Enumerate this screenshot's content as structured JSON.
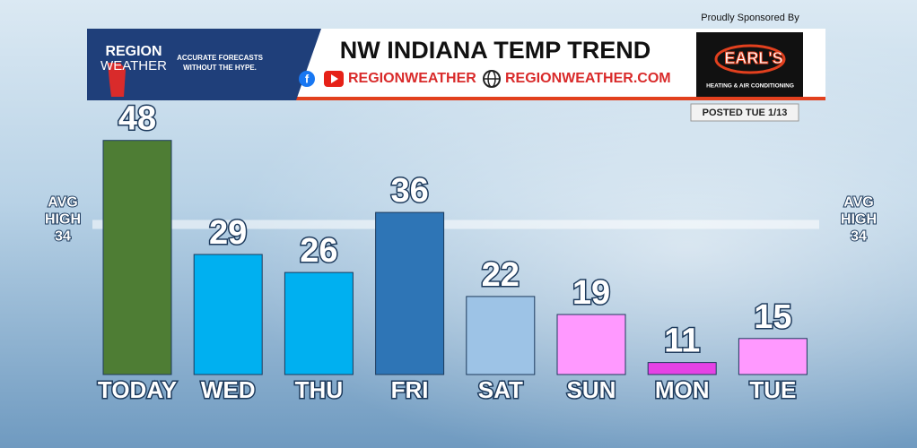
{
  "header": {
    "logo_top": "REGION",
    "logo_bottom": "WEATHER",
    "tagline": [
      "ACCURATE FORECASTS",
      "WITHOUT THE HYPE."
    ],
    "social": "REGIONWEATHER",
    "website": "REGIONWEATHER.COM",
    "sponsor_intro": "Proudly Sponsored By",
    "sponsor_name": "EARL'S",
    "sponsor_tagline": "HEATING & AIR CONDITIONING",
    "posted": "POSTED TUE 1/13"
  },
  "chart_data": {
    "type": "bar",
    "title": "NW INDIANA TEMP TREND",
    "categories": [
      "TODAY",
      "WED",
      "THU",
      "FRI",
      "SAT",
      "SUN",
      "MON",
      "TUE"
    ],
    "values": [
      48,
      29,
      26,
      36,
      22,
      19,
      11,
      15
    ],
    "colors": [
      "#4e7d34",
      "#00b0f0",
      "#00b0f0",
      "#2e75b6",
      "#9dc3e6",
      "#ff99ff",
      "#e542e5",
      "#ff99ff"
    ],
    "ylim": [
      9,
      49
    ],
    "reference_line": {
      "label": [
        "AVG",
        "HIGH"
      ],
      "value": 34
    }
  }
}
